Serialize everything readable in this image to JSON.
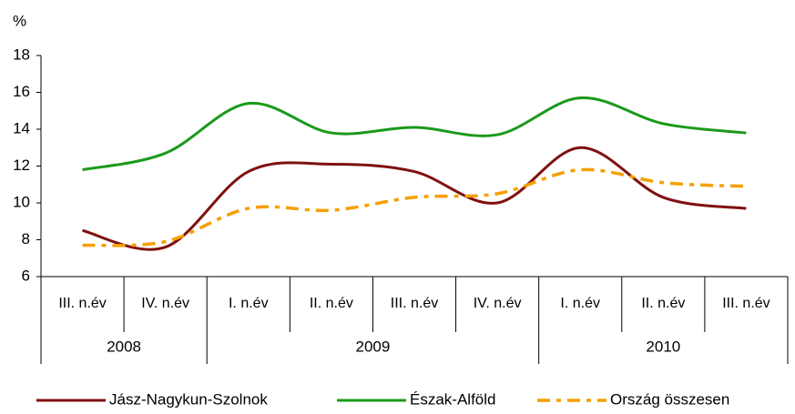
{
  "chart_data": {
    "type": "line",
    "y_label": "%",
    "categories": [
      "III. n.év",
      "IV. n.év",
      "I. n.év",
      "II. n.év",
      "III. n.év",
      "IV. n.év",
      "I. n.év",
      "II. n.év",
      "III. n.év"
    ],
    "x_groups": [
      {
        "label": "2008",
        "size": 2
      },
      {
        "label": "2009",
        "size": 4
      },
      {
        "label": "2010",
        "size": 3
      }
    ],
    "series": [
      {
        "name": "Jász-Nagykun-Szolnok",
        "color": "#7f1010",
        "dash": false,
        "values": [
          8.5,
          7.6,
          11.7,
          12.1,
          11.7,
          10.0,
          13.0,
          10.3,
          9.7
        ]
      },
      {
        "name": "Észak-Alföld",
        "color": "#1a9a1a",
        "dash": false,
        "values": [
          11.8,
          12.7,
          15.4,
          13.8,
          14.1,
          13.7,
          15.7,
          14.3,
          13.8
        ]
      },
      {
        "name": "Ország összesen",
        "color": "#f5a000",
        "dash": true,
        "values": [
          7.7,
          7.9,
          9.7,
          9.6,
          10.3,
          10.5,
          11.8,
          11.1,
          10.9
        ]
      }
    ],
    "ylim": [
      6,
      18
    ],
    "yticks": [
      6,
      8,
      10,
      12,
      14,
      16,
      18
    ],
    "grid": false,
    "smooth": true,
    "legend": "bottom"
  }
}
